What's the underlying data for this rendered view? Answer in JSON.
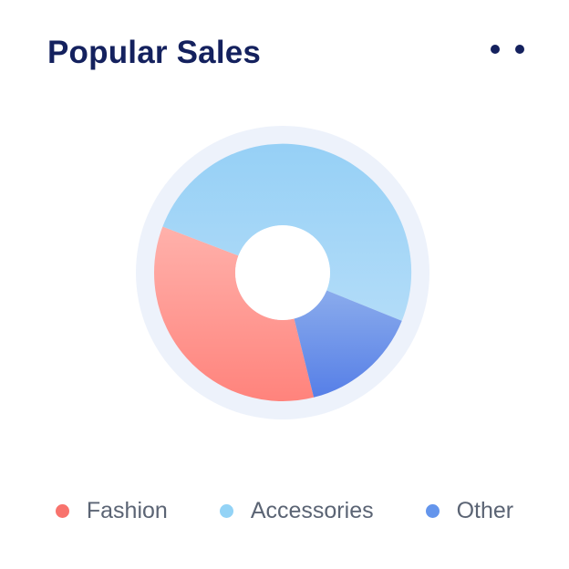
{
  "card": {
    "title": "Popular Sales",
    "title_color": "#14215E",
    "background": "#FFFFFF"
  },
  "menu": {
    "dot_count": 2,
    "dot_color": "#14215E"
  },
  "chart_data": {
    "type": "pie",
    "donut": true,
    "title": "Popular Sales",
    "legend_position": "bottom",
    "units": "percent",
    "categories": [
      "Fashion",
      "Accessories",
      "Other"
    ],
    "values": [
      35,
      50,
      15
    ],
    "segments": [
      {
        "label": "Fashion",
        "value": 35,
        "start_angle": 166,
        "end_angle": 291,
        "gradient_top": "#FFB1AB",
        "gradient_bottom": "#FF837C",
        "legend_color": "#F8736D"
      },
      {
        "label": "Accessories",
        "value": 50,
        "start_angle": 291,
        "end_angle": 472,
        "gradient_top": "#96D0F6",
        "gradient_bottom": "#B2DCF8",
        "legend_color": "#93D3F6"
      },
      {
        "label": "Other",
        "value": 15,
        "start_angle": 112,
        "end_angle": 166,
        "gradient_top": "#8AABEC",
        "gradient_bottom": "#567FE7",
        "legend_color": "#6495EC"
      }
    ],
    "geometry": {
      "outer_radius": 141,
      "inner_radius": 52,
      "halo_radius": 161
    },
    "halo_color": "#EDF2FB",
    "hole_color": "#FFFFFF"
  },
  "legend": {
    "text_color": "#5B6474"
  }
}
